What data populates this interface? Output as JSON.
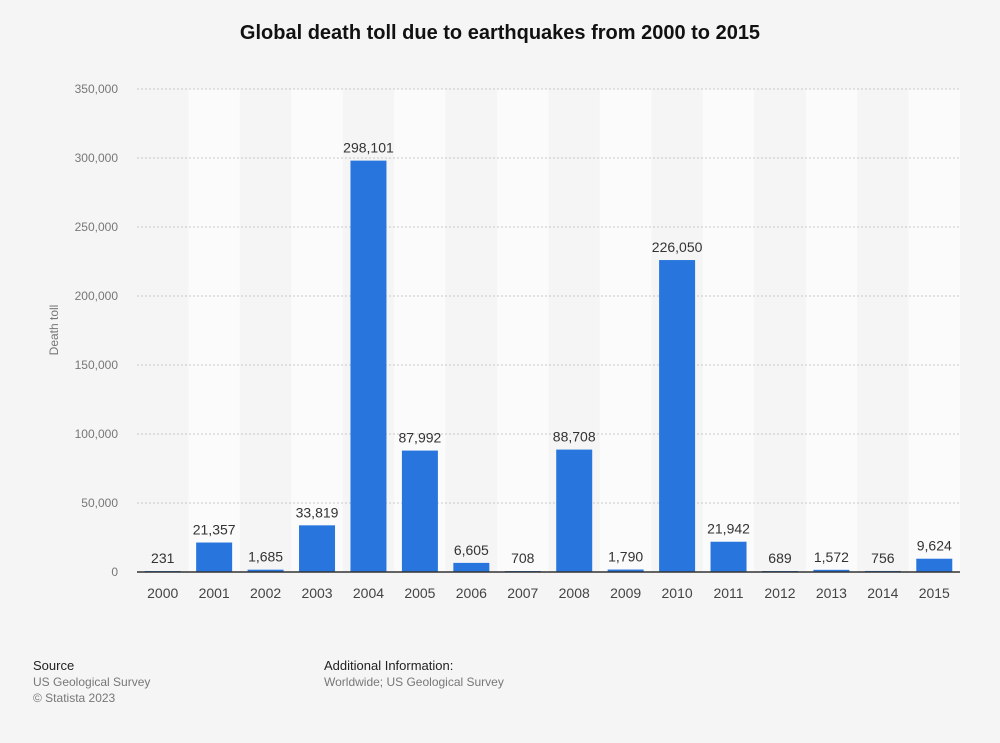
{
  "chart_data": {
    "type": "bar",
    "title": "Global death toll due to earthquakes from 2000 to 2015",
    "xlabel": "",
    "ylabel": "Death toll",
    "categories": [
      "2000",
      "2001",
      "2002",
      "2003",
      "2004",
      "2005",
      "2006",
      "2007",
      "2008",
      "2009",
      "2010",
      "2011",
      "2012",
      "2013",
      "2014",
      "2015"
    ],
    "values": [
      231,
      21357,
      1685,
      33819,
      298101,
      87992,
      6605,
      708,
      88708,
      1790,
      226050,
      21942,
      689,
      1572,
      756,
      9624
    ],
    "value_labels": [
      "231",
      "21,357",
      "1,685",
      "33,819",
      "298,101",
      "87,992",
      "6,605",
      "708",
      "88,708",
      "1,790",
      "226,050",
      "21,942",
      "689",
      "1,572",
      "756",
      "9,624"
    ],
    "ylim": [
      0,
      350000
    ],
    "yticks": [
      0,
      50000,
      100000,
      150000,
      200000,
      250000,
      300000,
      350000
    ],
    "ytick_labels": [
      "0",
      "50,000",
      "100,000",
      "150,000",
      "200,000",
      "250,000",
      "300,000",
      "350,000"
    ],
    "grid": true,
    "legend": "none",
    "bar_color": "#2876dd"
  },
  "source": {
    "heading": "Source",
    "line1": "US Geological Survey",
    "line2": "© Statista 2023"
  },
  "additional": {
    "heading": "Additional Information:",
    "line1": "Worldwide; US Geological Survey"
  }
}
